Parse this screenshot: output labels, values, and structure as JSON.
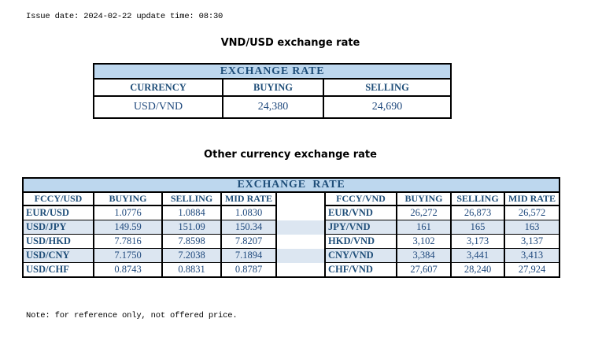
{
  "meta": {
    "issue_line": "Issue date: 2024-02-22 update time: 08:30",
    "note_line": "Note: for reference only, not offered price."
  },
  "colors": {
    "band_bg": "#BDD7EE",
    "stripe_bg": "#DCE6F1",
    "header_text": "#1F4E79",
    "value_text": "#1F497D",
    "border": "#000000"
  },
  "usd_table": {
    "title": "VND/USD exchange rate",
    "band_header": "EXCHANGE RATE",
    "columns": [
      "CURRENCY",
      "BUYING",
      "SELLING"
    ],
    "rows": [
      [
        "USD/VND",
        "24,380",
        "24,690"
      ]
    ]
  },
  "other_table": {
    "title": "Other currency exchange rate",
    "band_header": "EXCHANGE  RATE",
    "left_columns": [
      "FCCY/USD",
      "BUYING",
      "SELLING",
      "MID RATE"
    ],
    "right_columns": [
      "FCCY/VND",
      "BUYING",
      "SELLING",
      "MID RATE"
    ],
    "rows": [
      {
        "left": [
          "EUR/USD",
          "1.0776",
          "1.0884",
          "1.0830"
        ],
        "right": [
          "EUR/VND",
          "26,272",
          "26,873",
          "26,572"
        ]
      },
      {
        "left": [
          "USD/JPY",
          "149.59",
          "151.09",
          "150.34"
        ],
        "right": [
          "JPY/VND",
          "161",
          "165",
          "163"
        ]
      },
      {
        "left": [
          "USD/HKD",
          "7.7816",
          "7.8598",
          "7.8207"
        ],
        "right": [
          "HKD/VND",
          "3,102",
          "3,173",
          "3,137"
        ]
      },
      {
        "left": [
          "USD/CNY",
          "7.1750",
          "7.2038",
          "7.1894"
        ],
        "right": [
          "CNY/VND",
          "3,384",
          "3,441",
          "3,413"
        ]
      },
      {
        "left": [
          "USD/CHF",
          "0.8743",
          "0.8831",
          "0.8787"
        ],
        "right": [
          "CHF/VND",
          "27,607",
          "28,240",
          "27,924"
        ]
      }
    ]
  }
}
